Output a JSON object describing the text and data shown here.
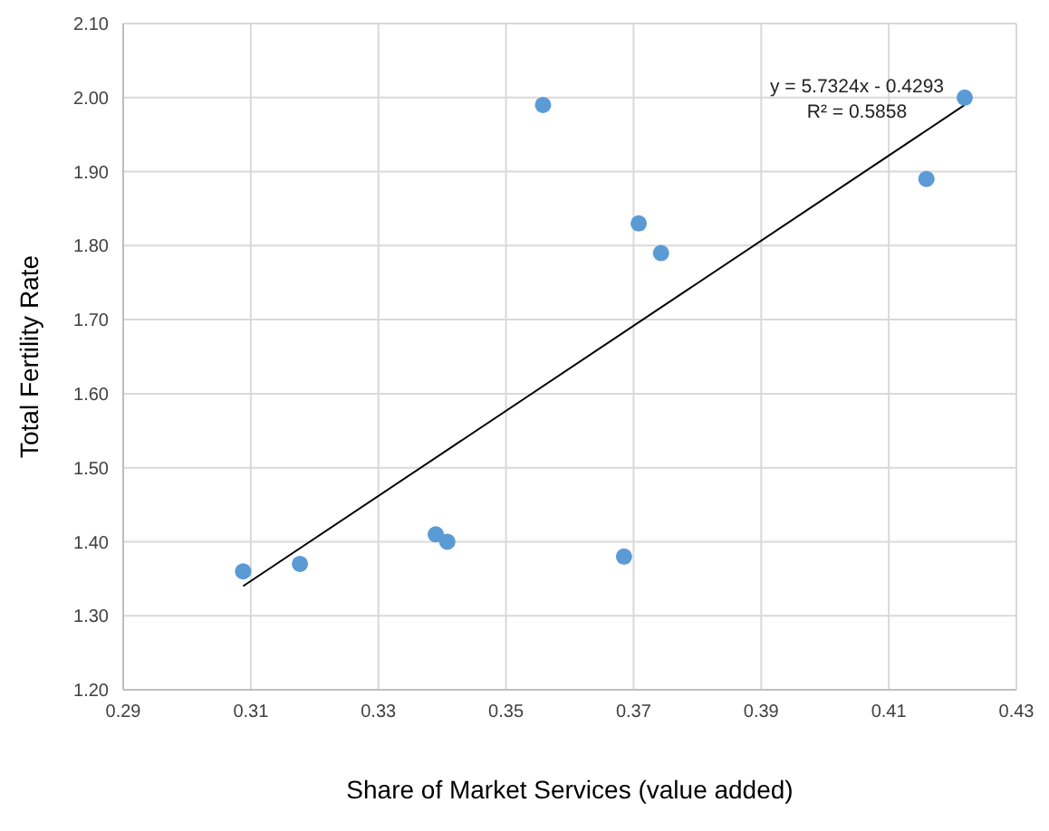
{
  "chart_data": {
    "type": "scatter",
    "xlabel": "Share of Market Services (value added)",
    "ylabel": "Total Fertility Rate",
    "series": [
      {
        "color": "#5b9bd5",
        "marker": "circle",
        "x": [
          0.3088,
          0.3177,
          0.339,
          0.3408,
          0.3558,
          0.3685,
          0.3708,
          0.3743,
          0.4159,
          0.4219
        ],
        "values": [
          1.36,
          1.37,
          1.41,
          1.4,
          1.99,
          1.38,
          1.83,
          1.79,
          1.89,
          2.0
        ]
      },
      {
        "type": "line",
        "color": "#000000",
        "x": [
          0.3088,
          0.4219
        ],
        "values": [
          1.34,
          1.99
        ]
      }
    ],
    "grid": true,
    "xlim": [
      0.29,
      0.43
    ],
    "xticks": [
      0.29,
      0.31,
      0.33,
      0.35,
      0.37,
      0.39,
      0.41,
      0.43
    ],
    "ylim": [
      1.2,
      2.1
    ],
    "yticks": [
      {
        "value": 1.2,
        "label": "1.20"
      },
      {
        "value": 1.3,
        "label": "1.30"
      },
      {
        "value": 1.4,
        "label": "1.40"
      },
      {
        "value": 1.5,
        "label": "1.50"
      },
      {
        "value": 1.6,
        "label": "1.60"
      },
      {
        "value": 1.7,
        "label": "1.70"
      },
      {
        "value": 1.8,
        "label": "1.80"
      },
      {
        "value": 1.9,
        "label": "1.90"
      },
      {
        "value": 2.0,
        "label": "2.00"
      },
      {
        "value": 2.1,
        "label": "2.10"
      }
    ],
    "annotations": [
      "y = 5.7324x - 0.4293",
      "R² = 0.5858"
    ]
  }
}
